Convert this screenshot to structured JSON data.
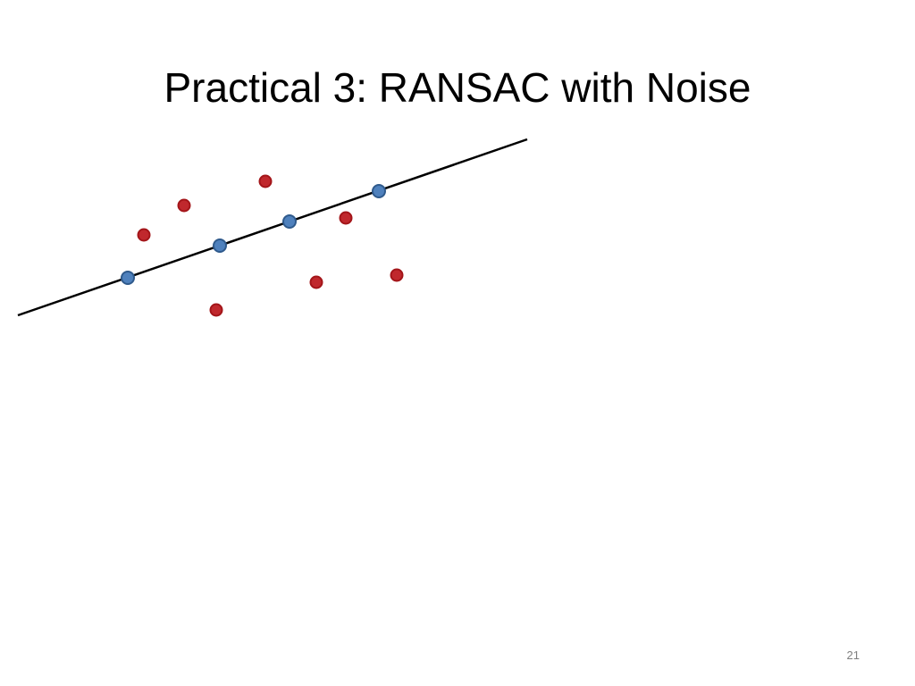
{
  "title": "Practical 3: RANSAC with Noise",
  "page_number": "21"
}
